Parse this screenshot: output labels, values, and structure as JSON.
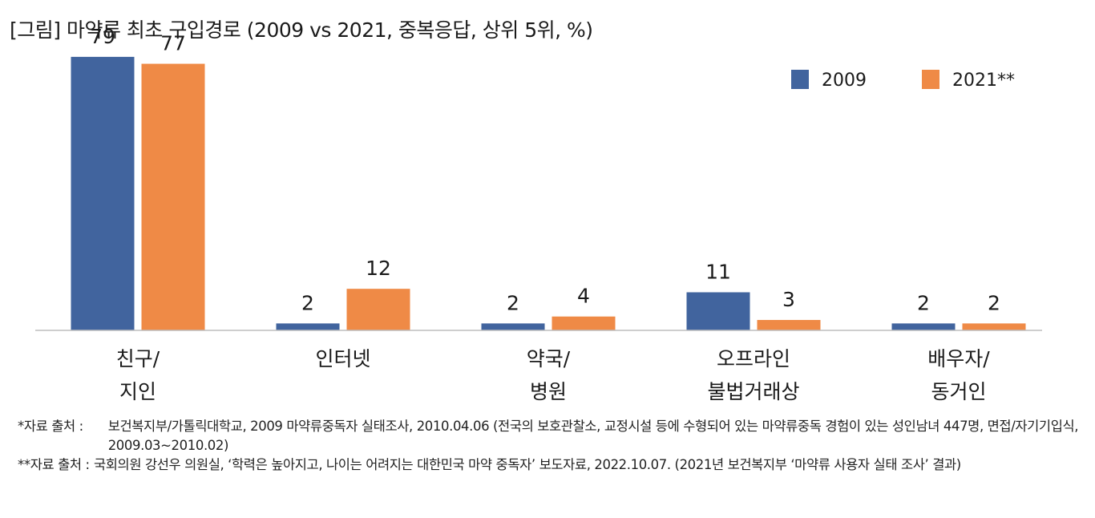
{
  "title": "[그림] 마약류 최초 구입경로 (2009 vs 2021, 중복응답, 상위 5위, %)",
  "chart_data": {
    "type": "bar",
    "categories": [
      [
        "친구/",
        "지인"
      ],
      [
        "인터넷"
      ],
      [
        "약국/",
        "병원"
      ],
      [
        "오프라인",
        "불법거래상"
      ],
      [
        "배우자/",
        "동거인"
      ]
    ],
    "series": [
      {
        "name": "2009",
        "color": "#41649e",
        "values": [
          79,
          2,
          2,
          11,
          2
        ]
      },
      {
        "name": "2021**",
        "color": "#ef8a46",
        "values": [
          77,
          12,
          4,
          3,
          2
        ]
      }
    ],
    "ylim": [
      0,
      85
    ],
    "xlabel": "",
    "ylabel": "",
    "legend": "top-right",
    "grid": false
  },
  "notes": [
    {
      "prefix": "*자료 출처 :",
      "text": "보건복지부/가톨릭대학교, 2009 마약류중독자 실태조사, 2010.04.06 (전국의 보호관찰소, 교정시설 등에 수형되어 있는 마약류중독 경험이 있는 성인남녀 447명, 면접/자기기입식, 2009.03~2010.02)"
    },
    {
      "prefix": "**자료 출처 :",
      "text": "국회의원 강선우 의원실, ‘학력은 높아지고, 나이는 어려지는 대한민국 마약 중독자’ 보도자료, 2022.10.07. (2021년 보건복지부 ‘마약류 사용자 실태 조사’ 결과)"
    }
  ]
}
